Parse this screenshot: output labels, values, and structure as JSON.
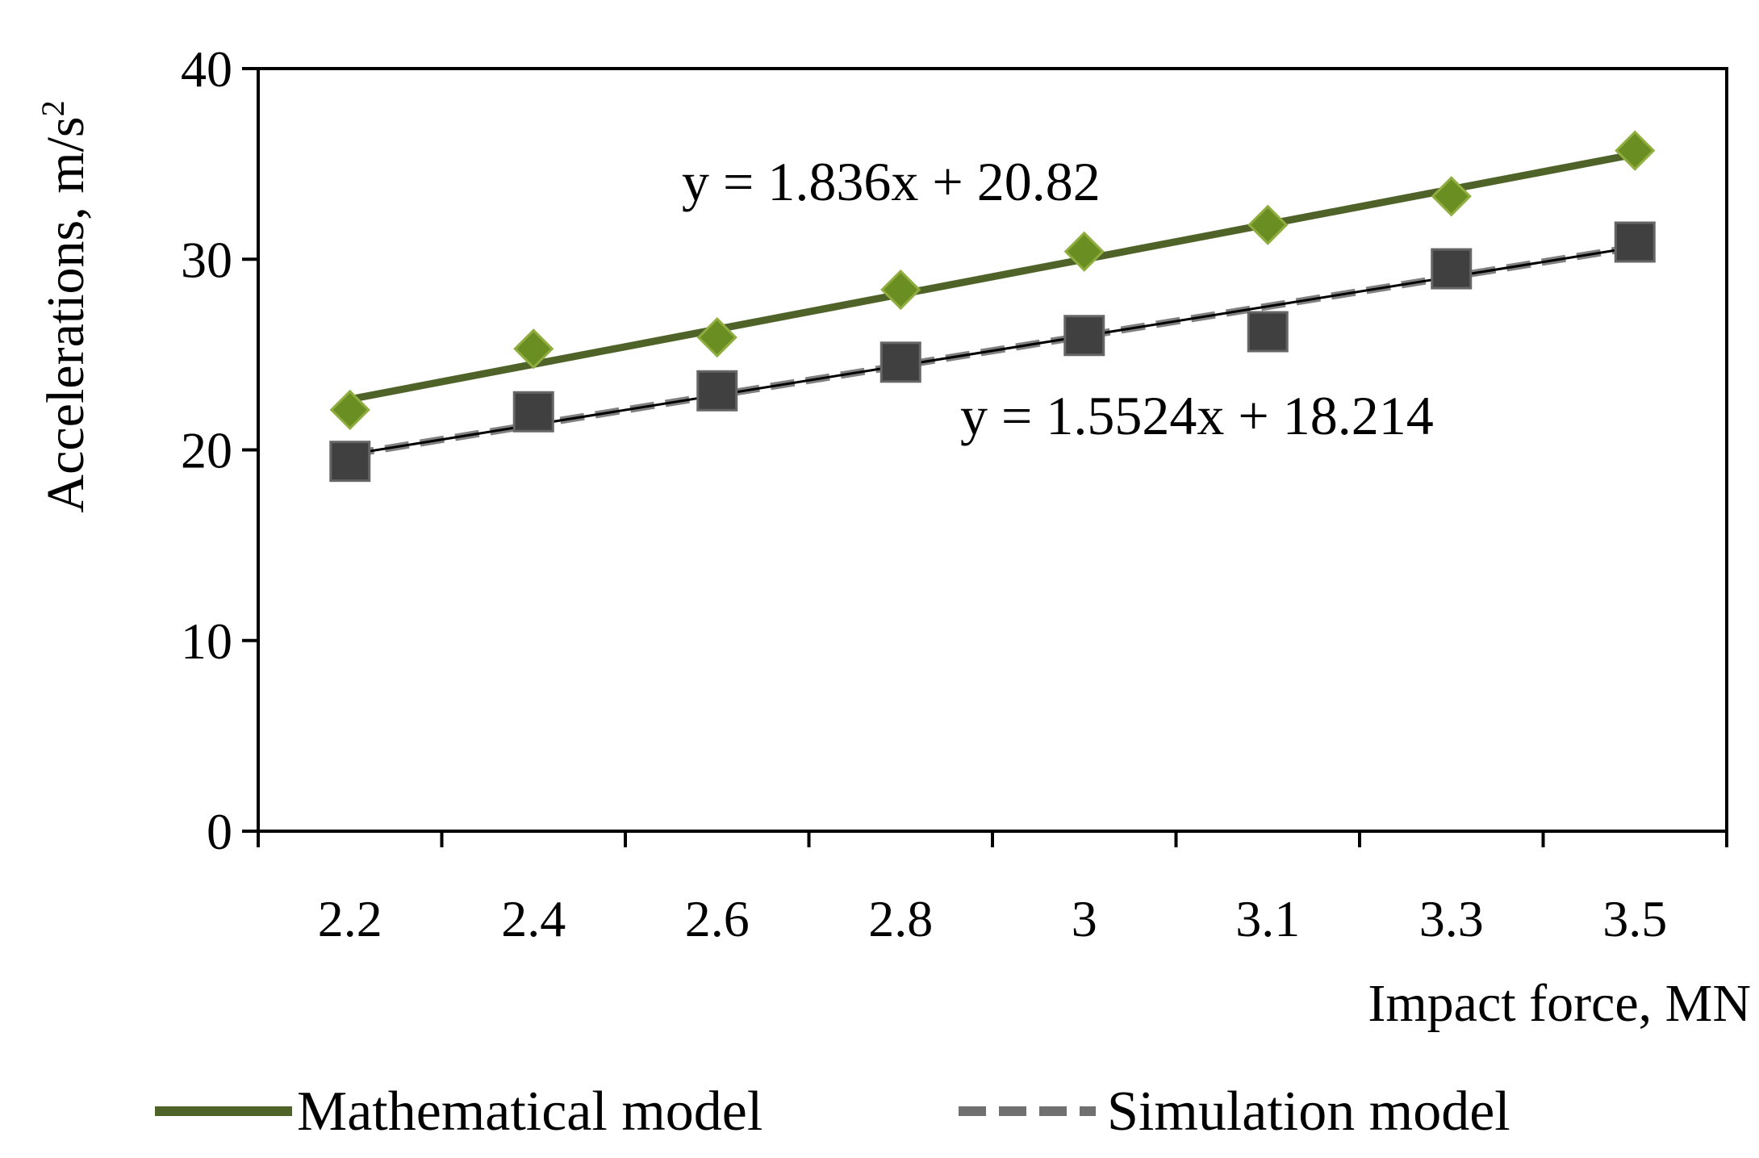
{
  "chart_data": {
    "type": "line",
    "title": "",
    "xlabel": "Impact force, MN",
    "ylabel_text": "Accelerations, m/s",
    "ylabel_sup": "2",
    "categories": [
      "2.2",
      "2.4",
      "2.6",
      "2.8",
      "3",
      "3.1",
      "3.3",
      "3.5"
    ],
    "ylim": [
      0,
      40
    ],
    "yticks": [
      "0",
      "10",
      "20",
      "30",
      "40"
    ],
    "grid": false,
    "legend_position": "bottom",
    "series": [
      {
        "name": "Mathematical model",
        "marker": "diamond",
        "color": "#6b8e23",
        "line_color": "#4f6228",
        "values": [
          22.1,
          25.3,
          25.9,
          28.4,
          30.4,
          31.8,
          33.3,
          35.7
        ],
        "trendline": {
          "slope": 1.836,
          "intercept": 20.82,
          "style": "solid",
          "label": "y = 1.836x + 20.82"
        }
      },
      {
        "name": "Simulation model",
        "marker": "square",
        "color": "#404040",
        "line_color": "#808080",
        "values": [
          19.4,
          22.0,
          23.1,
          24.6,
          26.0,
          26.2,
          29.5,
          30.9
        ],
        "trendline": {
          "slope": 1.5524,
          "intercept": 18.214,
          "style": "dashed",
          "label": "y = 1.5524x + 18.214"
        }
      }
    ]
  }
}
